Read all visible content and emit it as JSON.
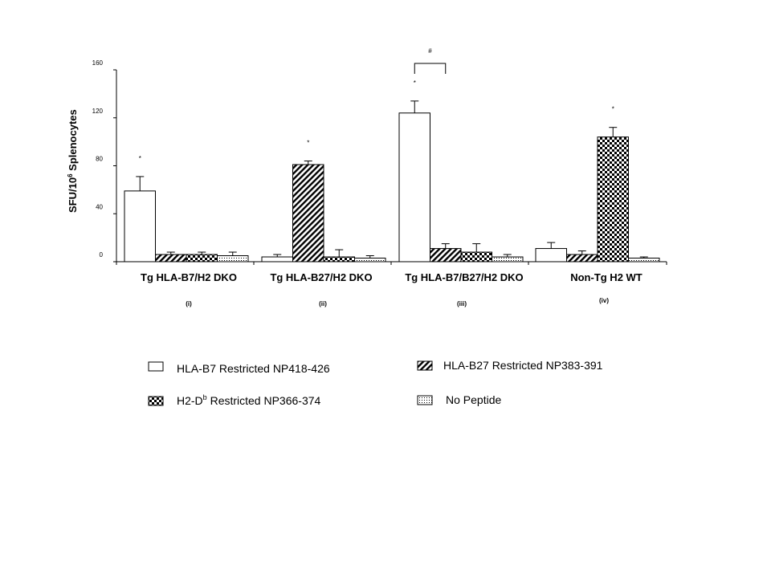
{
  "chart_data": {
    "type": "bar",
    "ylabel_main": "SFU/10",
    "ylabel_sup": "6",
    "ylabel_rest": " Splenocytes",
    "ylim": [
      0,
      160
    ],
    "yticks": [
      0,
      40,
      80,
      120,
      160
    ],
    "categories": [
      "Tg HLA-B7/H2 DKO",
      "Tg HLA-B27/H2 DKO",
      "Tg HLA-B7/B27/H2 DKO",
      "Non-Tg H2 WT"
    ],
    "category_sublabels": [
      "(i)",
      "(ii)",
      "(iii)",
      "(iv)"
    ],
    "series": [
      {
        "name": "HLA-B7 Restricted NP418-426",
        "pattern": "white",
        "values": [
          59,
          4,
          124,
          11
        ],
        "errors": [
          12,
          2,
          10,
          5
        ]
      },
      {
        "name": "HLA-B27 Restricted NP383-391",
        "pattern": "hatch",
        "values": [
          6,
          81,
          11,
          6
        ],
        "errors": [
          2,
          3,
          4,
          3
        ]
      },
      {
        "name_main": "H2-D",
        "name_sup": "b",
        "name_rest": " Restricted NP366-374",
        "pattern": "check",
        "values": [
          6,
          4,
          8,
          104
        ],
        "errors": [
          2,
          6,
          7,
          8
        ]
      },
      {
        "name": "No Peptide",
        "pattern": "dots",
        "values": [
          5,
          3,
          4,
          3
        ],
        "errors": [
          3,
          2,
          2,
          1
        ]
      }
    ],
    "significance": [
      {
        "category": 0,
        "series": 0,
        "label": "*"
      },
      {
        "category": 1,
        "series": 1,
        "label": "*"
      },
      {
        "category": 2,
        "series": 0,
        "label": "*"
      },
      {
        "category": 3,
        "series": 2,
        "label": "*"
      }
    ],
    "bracket": {
      "category": 2,
      "from_series": 0,
      "to_series": 1,
      "label": "#"
    }
  }
}
